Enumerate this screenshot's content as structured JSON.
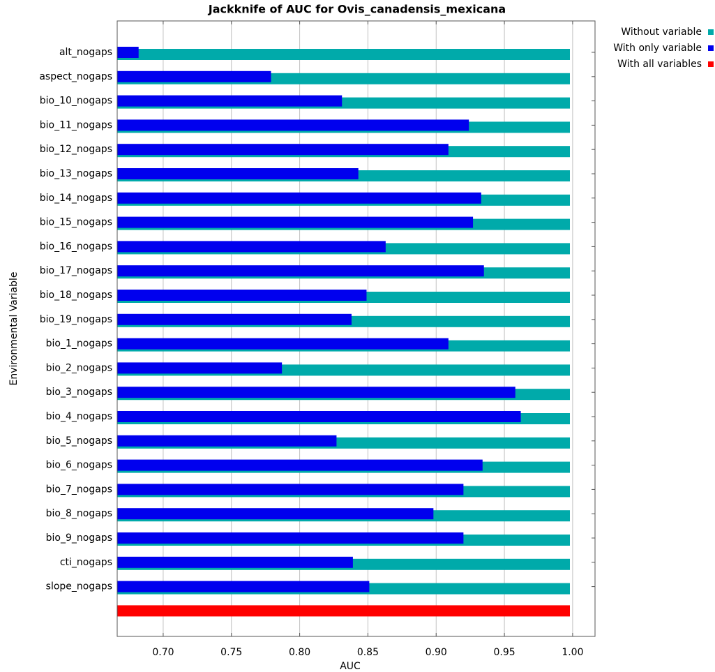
{
  "chart_data": {
    "type": "bar",
    "orientation": "horizontal",
    "title": "Jackknife of AUC for Ovis_canadensis_mexicana",
    "x_label": "AUC",
    "y_label": "Environmental Variable",
    "categories": [
      "alt_nogaps",
      "aspect_nogaps",
      "bio_10_nogaps",
      "bio_11_nogaps",
      "bio_12_nogaps",
      "bio_13_nogaps",
      "bio_14_nogaps",
      "bio_15_nogaps",
      "bio_16_nogaps",
      "bio_17_nogaps",
      "bio_18_nogaps",
      "bio_19_nogaps",
      "bio_1_nogaps",
      "bio_2_nogaps",
      "bio_3_nogaps",
      "bio_4_nogaps",
      "bio_5_nogaps",
      "bio_6_nogaps",
      "bio_7_nogaps",
      "bio_8_nogaps",
      "bio_9_nogaps",
      "cti_nogaps",
      "slope_nogaps",
      null
    ],
    "series": [
      {
        "name": "Without variable",
        "color": "#00aaaa",
        "values": [
          0.998,
          0.998,
          0.998,
          0.998,
          0.998,
          0.998,
          0.998,
          0.998,
          0.998,
          0.998,
          0.998,
          0.998,
          0.998,
          0.998,
          0.998,
          0.998,
          0.998,
          0.998,
          0.998,
          0.998,
          0.998,
          0.998,
          0.998,
          null
        ]
      },
      {
        "name": "With only variable",
        "color": "#0000ee",
        "values": [
          0.682,
          0.779,
          0.831,
          0.924,
          0.909,
          0.843,
          0.933,
          0.927,
          0.863,
          0.935,
          0.849,
          0.838,
          0.909,
          0.787,
          0.958,
          0.962,
          0.827,
          0.934,
          0.92,
          0.898,
          0.92,
          0.839,
          0.851,
          null
        ]
      },
      {
        "name": "With all variables",
        "color": "#ff0000",
        "values": [
          null,
          null,
          null,
          null,
          null,
          null,
          null,
          null,
          null,
          null,
          null,
          null,
          null,
          null,
          null,
          null,
          null,
          null,
          null,
          null,
          null,
          null,
          null,
          0.998
        ]
      }
    ],
    "xlim": [
      0.6663,
      1.0164
    ],
    "xticks": [
      {
        "value": 0.7,
        "label": "0.70"
      },
      {
        "value": 0.75,
        "label": "0.75"
      },
      {
        "value": 0.8,
        "label": "0.80"
      },
      {
        "value": 0.85,
        "label": "0.85"
      },
      {
        "value": 0.9,
        "label": "0.90"
      },
      {
        "value": 0.95,
        "label": "0.95"
      },
      {
        "value": 1.0,
        "label": "1.00"
      }
    ],
    "grid": true,
    "legend": "outside-top-right"
  }
}
